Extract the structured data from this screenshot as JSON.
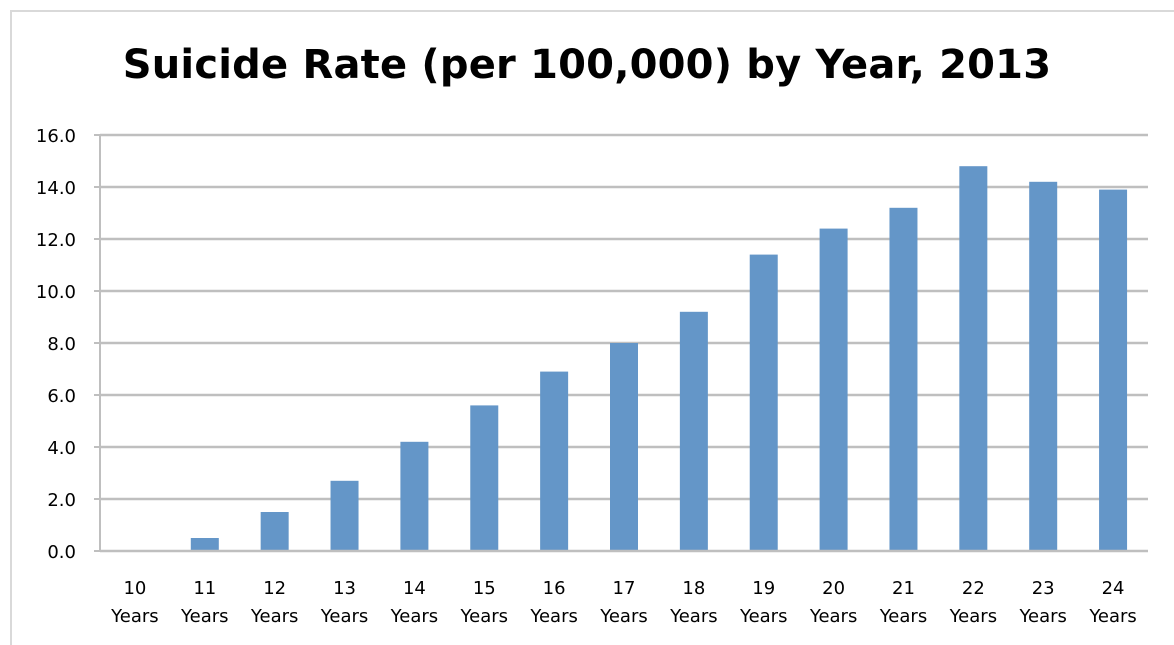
{
  "chart_data": {
    "type": "bar",
    "title": "Suicide Rate (per 100,000) by Year, 2013",
    "xlabel": "",
    "ylabel": "",
    "categories": [
      [
        "10",
        "Years"
      ],
      [
        "11",
        "Years"
      ],
      [
        "12",
        "Years"
      ],
      [
        "13",
        "Years"
      ],
      [
        "14",
        "Years"
      ],
      [
        "15",
        "Years"
      ],
      [
        "16",
        "Years"
      ],
      [
        "17",
        "Years"
      ],
      [
        "18",
        "Years"
      ],
      [
        "19",
        "Years"
      ],
      [
        "20",
        "Years"
      ],
      [
        "21",
        "Years"
      ],
      [
        "22",
        "Years"
      ],
      [
        "23",
        "Years"
      ],
      [
        "24",
        "Years"
      ]
    ],
    "values": [
      0.0,
      0.5,
      1.5,
      2.7,
      4.2,
      5.6,
      6.9,
      8.0,
      9.2,
      11.4,
      12.4,
      13.2,
      14.8,
      14.2,
      13.9
    ],
    "ylim": [
      0,
      16
    ],
    "yticks": [
      "0.0",
      "2.0",
      "4.0",
      "6.0",
      "8.0",
      "10.0",
      "12.0",
      "14.0",
      "16.0"
    ],
    "grid": true,
    "legend": "none",
    "bar_color": "#6496c8",
    "grid_color": "#bfbfbf"
  }
}
